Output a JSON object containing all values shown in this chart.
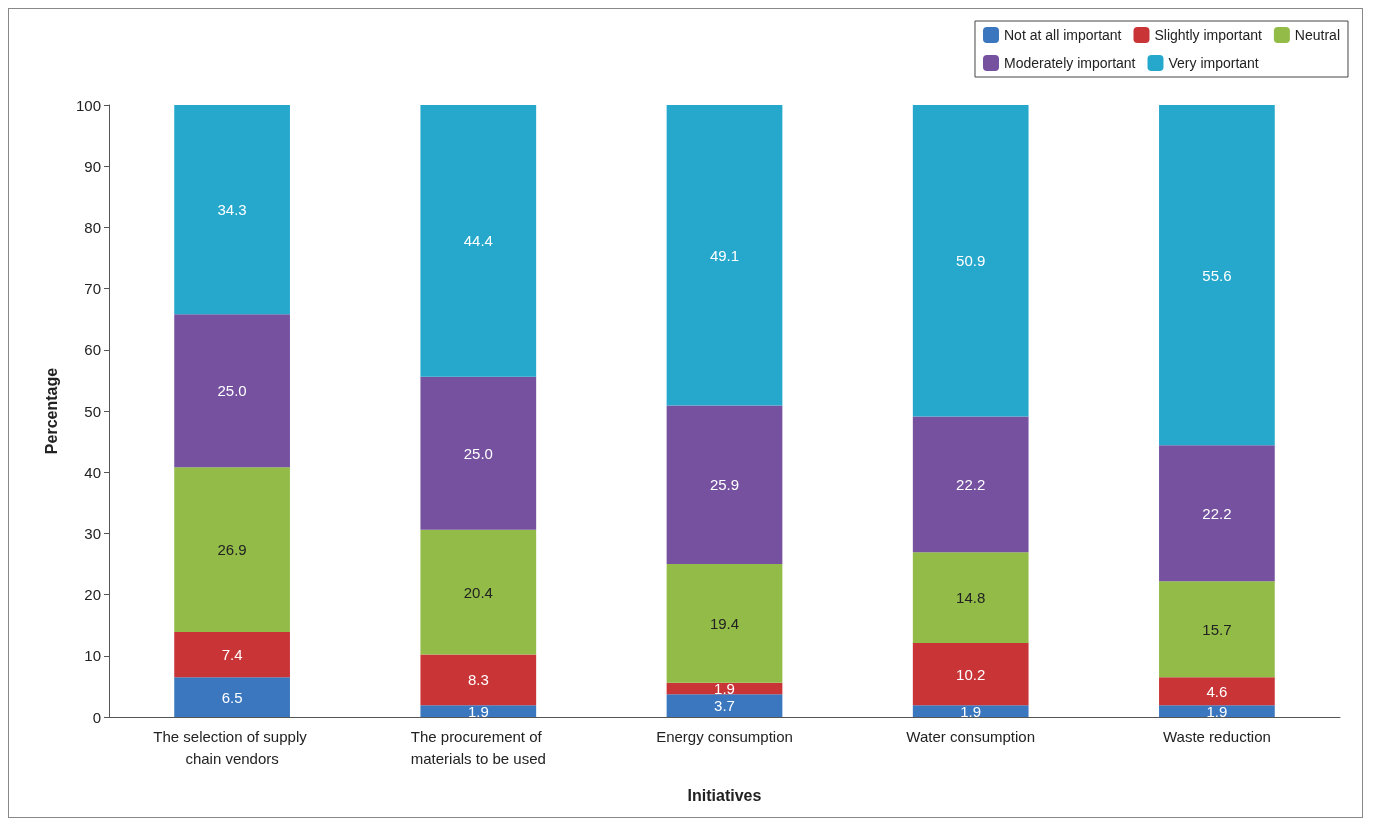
{
  "chart_data": {
    "type": "bar",
    "stacked": true,
    "xlabel": "Initiatives",
    "ylabel": "Percentage",
    "categories": [
      "The selection of supply chain vendors",
      "The procurement of materials to be used",
      "Energy consumption",
      "Water consumption",
      "Waste reduction"
    ],
    "series": [
      {
        "name": "Not at all important",
        "color": "#3a77be",
        "values": [
          6.5,
          1.9,
          3.7,
          1.9,
          1.9
        ],
        "value_labels": [
          "6.5",
          "1.9",
          "3.7",
          "1.9",
          "1.9"
        ]
      },
      {
        "name": "Slightly important",
        "color": "#c93437",
        "values": [
          7.4,
          8.3,
          1.9,
          10.2,
          4.6
        ],
        "value_labels": [
          "7.4",
          "8.3",
          "1.9",
          "10.2",
          "4.6"
        ]
      },
      {
        "name": "Neutral",
        "color": "#92bb48",
        "values": [
          26.9,
          20.4,
          19.4,
          14.8,
          15.7
        ],
        "value_labels": [
          "26.9",
          "20.4",
          "19.4",
          "14.8",
          "15.7"
        ]
      },
      {
        "name": "Moderately important",
        "color": "#7551a0",
        "values": [
          25.0,
          25.0,
          25.9,
          22.2,
          22.2
        ],
        "value_labels": [
          "25.0",
          "25.0",
          "25.9",
          "22.2",
          "22.2"
        ]
      },
      {
        "name": "Very important",
        "color": "#26a8cc",
        "values": [
          34.3,
          44.4,
          49.1,
          50.9,
          55.6
        ],
        "value_labels": [
          "34.3",
          "44.4",
          "49.1",
          "50.9",
          "55.6"
        ]
      }
    ],
    "ylim": [
      0,
      100
    ],
    "yticks": [
      0,
      10,
      20,
      30,
      40,
      50,
      60,
      70,
      80,
      90,
      100
    ],
    "grid": false,
    "legend": "top right"
  }
}
